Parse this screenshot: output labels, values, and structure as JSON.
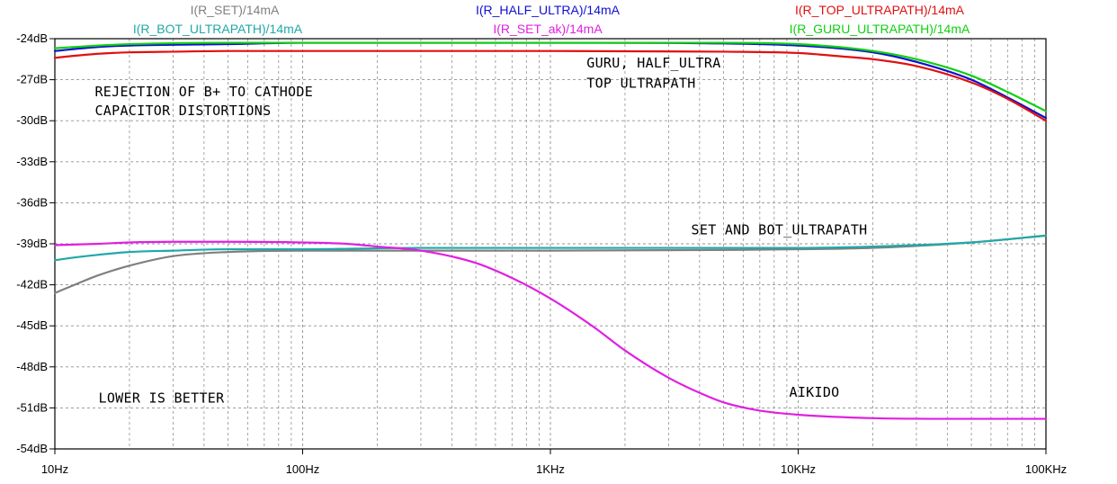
{
  "chart_data": {
    "type": "line",
    "title": "",
    "xlabel": "",
    "ylabel": "",
    "x_scale": "log",
    "xlim": [
      10,
      100000
    ],
    "ylim": [
      -54,
      -24
    ],
    "grid": true,
    "x_ticks": [
      {
        "value": 10,
        "label": "10Hz"
      },
      {
        "value": 100,
        "label": "100Hz"
      },
      {
        "value": 1000,
        "label": "1KHz"
      },
      {
        "value": 10000,
        "label": "10KHz"
      },
      {
        "value": 100000,
        "label": "100KHz"
      }
    ],
    "y_ticks": [
      {
        "value": -24,
        "label": "-24dB"
      },
      {
        "value": -27,
        "label": "-27dB"
      },
      {
        "value": -30,
        "label": "-30dB"
      },
      {
        "value": -33,
        "label": "-33dB"
      },
      {
        "value": -36,
        "label": "-36dB"
      },
      {
        "value": -39,
        "label": "-39dB"
      },
      {
        "value": -42,
        "label": "-42dB"
      },
      {
        "value": -45,
        "label": "-45dB"
      },
      {
        "value": -48,
        "label": "-48dB"
      },
      {
        "value": -51,
        "label": "-51dB"
      },
      {
        "value": -54,
        "label": "-54dB"
      }
    ],
    "series": [
      {
        "name": "I(R_SET)/14mA",
        "color": "#808080",
        "x": [
          10,
          12,
          15,
          20,
          30,
          50,
          100,
          200,
          300,
          1000,
          10000,
          20000,
          50000,
          100000
        ],
        "y": [
          -42.6,
          -42.0,
          -41.3,
          -40.6,
          -39.9,
          -39.6,
          -39.5,
          -39.5,
          -39.5,
          -39.5,
          -39.4,
          -39.3,
          -38.9,
          -38.4
        ]
      },
      {
        "name": "I(R_BOT_ULTRAPATH)/14mA",
        "color": "#20A8A8",
        "x": [
          10,
          12,
          15,
          20,
          30,
          50,
          100,
          300,
          1000,
          10000,
          20000,
          50000,
          100000
        ],
        "y": [
          -40.2,
          -40.0,
          -39.8,
          -39.6,
          -39.5,
          -39.4,
          -39.4,
          -39.3,
          -39.3,
          -39.3,
          -39.2,
          -38.9,
          -38.4
        ]
      },
      {
        "name": "I(R_HALF_ULTRA)/14mA",
        "color": "#1010D0",
        "x": [
          10,
          15,
          20,
          50,
          100,
          1000,
          5000,
          10000,
          20000,
          30000,
          50000,
          70000,
          100000
        ],
        "y": [
          -24.9,
          -24.6,
          -24.5,
          -24.4,
          -24.3,
          -24.3,
          -24.35,
          -24.5,
          -25.0,
          -25.7,
          -27.0,
          -28.3,
          -29.8
        ]
      },
      {
        "name": "I(R_SET_ak)/14mA",
        "color": "#E020E0",
        "x": [
          10,
          15,
          20,
          30,
          50,
          100,
          150,
          200,
          300,
          500,
          700,
          1000,
          1500,
          2000,
          3000,
          4000,
          5000,
          7000,
          10000,
          20000,
          50000,
          100000
        ],
        "y": [
          -39.1,
          -39.0,
          -38.9,
          -38.85,
          -38.85,
          -38.9,
          -39.0,
          -39.2,
          -39.5,
          -40.4,
          -41.5,
          -43.0,
          -45.1,
          -46.8,
          -48.8,
          -49.9,
          -50.6,
          -51.2,
          -51.5,
          -51.75,
          -51.8,
          -51.8
        ]
      },
      {
        "name": "I(R_TOP_ULTRAPATH)/14mA",
        "color": "#E01010",
        "x": [
          10,
          12,
          15,
          20,
          30,
          50,
          100,
          1000,
          5000,
          10000,
          15000,
          20000,
          30000,
          50000,
          70000,
          100000
        ],
        "y": [
          -25.4,
          -25.25,
          -25.1,
          -25.0,
          -24.95,
          -24.9,
          -24.9,
          -24.9,
          -24.95,
          -25.05,
          -25.3,
          -25.5,
          -26.0,
          -27.2,
          -28.4,
          -30.0
        ]
      },
      {
        "name": "I(R_GURU_ULTRAPATH)/14mA",
        "color": "#10D010",
        "x": [
          10,
          15,
          20,
          50,
          100,
          1000,
          5000,
          10000,
          20000,
          30000,
          50000,
          70000,
          100000
        ],
        "y": [
          -24.7,
          -24.5,
          -24.4,
          -24.3,
          -24.3,
          -24.3,
          -24.3,
          -24.4,
          -24.9,
          -25.5,
          -26.7,
          -27.9,
          -29.3
        ]
      }
    ],
    "legend": {
      "placement": "top",
      "entries": [
        "I(R_SET)/14mA",
        "I(R_BOT_ULTRAPATH)/14mA",
        "I(R_HALF_ULTRA)/14mA",
        "I(R_SET_ak)/14mA",
        "I(R_TOP_ULTRAPATH)/14mA",
        "I(R_GURU_ULTRAPATH)/14mA"
      ]
    },
    "annotations": [
      {
        "text": "GURU, HALF_ULTRA",
        "x": 1400,
        "y": -26.1
      },
      {
        "text": "TOP ULTRAPATH",
        "x": 1400,
        "y": -27.6
      },
      {
        "text": "REJECTION OF B+ TO CATHODE",
        "x": 14.5,
        "y": -28.2
      },
      {
        "text": "CAPACITOR DISTORTIONS",
        "x": 14.5,
        "y": -29.6
      },
      {
        "text": "SET AND BOT_ULTRAPATH",
        "x": 3700,
        "y": -38.3
      },
      {
        "text": "LOWER IS BETTER",
        "x": 15,
        "y": -50.6
      },
      {
        "text": "AIKIDO",
        "x": 9200,
        "y": -50.2
      }
    ]
  }
}
